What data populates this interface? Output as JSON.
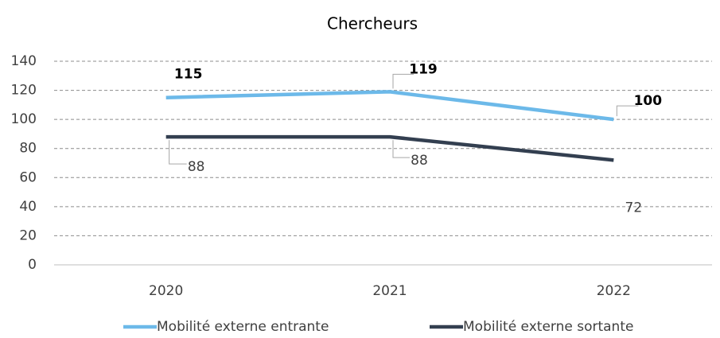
{
  "chart_data": {
    "type": "line",
    "title": "Chercheurs",
    "categories": [
      "2020",
      "2021",
      "2022"
    ],
    "series": [
      {
        "name": "Mobilité externe entrante",
        "color": "#6cb9e9",
        "values": [
          115,
          119,
          100
        ]
      },
      {
        "name": "Mobilité externe sortante",
        "color": "#333f50",
        "values": [
          88,
          88,
          72
        ]
      }
    ],
    "ylim": [
      0,
      140
    ],
    "yticks": [
      0,
      20,
      40,
      60,
      80,
      100,
      120,
      140
    ],
    "grid": true,
    "legend": "bottom"
  }
}
